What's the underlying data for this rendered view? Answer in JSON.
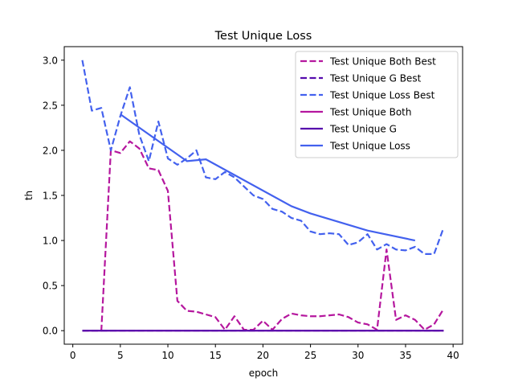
{
  "chart_data": {
    "type": "line",
    "title": "Test Unique Loss",
    "xlabel": "epoch",
    "ylabel": "th",
    "xlim": [
      -0.9,
      41.0
    ],
    "ylim": [
      -0.15,
      3.15
    ],
    "xticks": [
      0,
      5,
      10,
      15,
      20,
      25,
      30,
      35,
      40
    ],
    "yticks": [
      0.0,
      0.5,
      1.0,
      1.5,
      2.0,
      2.5,
      3.0
    ],
    "xtick_labels": [
      "0",
      "5",
      "10",
      "15",
      "20",
      "25",
      "30",
      "35",
      "40"
    ],
    "ytick_labels": [
      "0.0",
      "0.5",
      "1.0",
      "1.5",
      "2.0",
      "2.5",
      "3.0"
    ],
    "grid": false,
    "legend_position": "top-right",
    "series": [
      {
        "name": "Test Unique Both Best",
        "color": "#b5179e",
        "style": "dashed",
        "x": [
          1,
          2,
          3,
          4,
          5,
          6,
          7,
          8,
          9,
          10,
          11,
          12,
          13,
          14,
          15,
          16,
          17,
          18,
          19,
          20,
          21,
          22,
          23,
          24,
          25,
          26,
          27,
          28,
          29,
          30,
          31,
          32,
          33,
          34,
          35,
          36,
          37,
          38,
          39
        ],
        "y": [
          0,
          0,
          0,
          2.0,
          1.97,
          2.1,
          2.02,
          1.8,
          1.78,
          1.55,
          0.33,
          0.22,
          0.21,
          0.18,
          0.15,
          0.01,
          0.16,
          0.01,
          0.01,
          0.11,
          0.01,
          0.13,
          0.19,
          0.17,
          0.16,
          0.16,
          0.17,
          0.18,
          0.15,
          0.09,
          0.07,
          0.01,
          0.9,
          0.12,
          0.17,
          0.12,
          0.01,
          0.07,
          0.24
        ]
      },
      {
        "name": "Test Unique G Best",
        "color": "#560bad",
        "style": "dashed",
        "x": [
          1,
          39
        ],
        "y": [
          0,
          0
        ]
      },
      {
        "name": "Test Unique Loss Best",
        "color": "#4361ee",
        "style": "dashed",
        "x": [
          1,
          2,
          3,
          4,
          5,
          6,
          7,
          8,
          9,
          10,
          11,
          12,
          13,
          14,
          15,
          16,
          17,
          18,
          19,
          20,
          21,
          22,
          23,
          24,
          25,
          26,
          27,
          28,
          29,
          30,
          31,
          32,
          33,
          34,
          35,
          36,
          37,
          38,
          39
        ],
        "y": [
          3.0,
          2.44,
          2.47,
          2.0,
          2.38,
          2.7,
          2.17,
          1.88,
          2.32,
          1.91,
          1.84,
          1.91,
          2.0,
          1.7,
          1.68,
          1.76,
          1.7,
          1.6,
          1.5,
          1.46,
          1.35,
          1.32,
          1.25,
          1.22,
          1.1,
          1.07,
          1.08,
          1.07,
          0.95,
          0.98,
          1.07,
          0.9,
          0.96,
          0.9,
          0.89,
          0.93,
          0.85,
          0.85,
          1.14
        ]
      },
      {
        "name": "Test Unique Both",
        "color": "#b5179e",
        "style": "solid",
        "x": [
          1,
          39
        ],
        "y": [
          0,
          0
        ]
      },
      {
        "name": "Test Unique G",
        "color": "#560bad",
        "style": "solid",
        "x": [
          1,
          39
        ],
        "y": [
          0,
          0
        ]
      },
      {
        "name": "Test Unique Loss",
        "color": "#4361ee",
        "style": "solid",
        "x": [
          5,
          12,
          14,
          23,
          25,
          31,
          36
        ],
        "y": [
          2.4,
          1.88,
          1.9,
          1.38,
          1.3,
          1.11,
          1.0
        ]
      }
    ]
  }
}
